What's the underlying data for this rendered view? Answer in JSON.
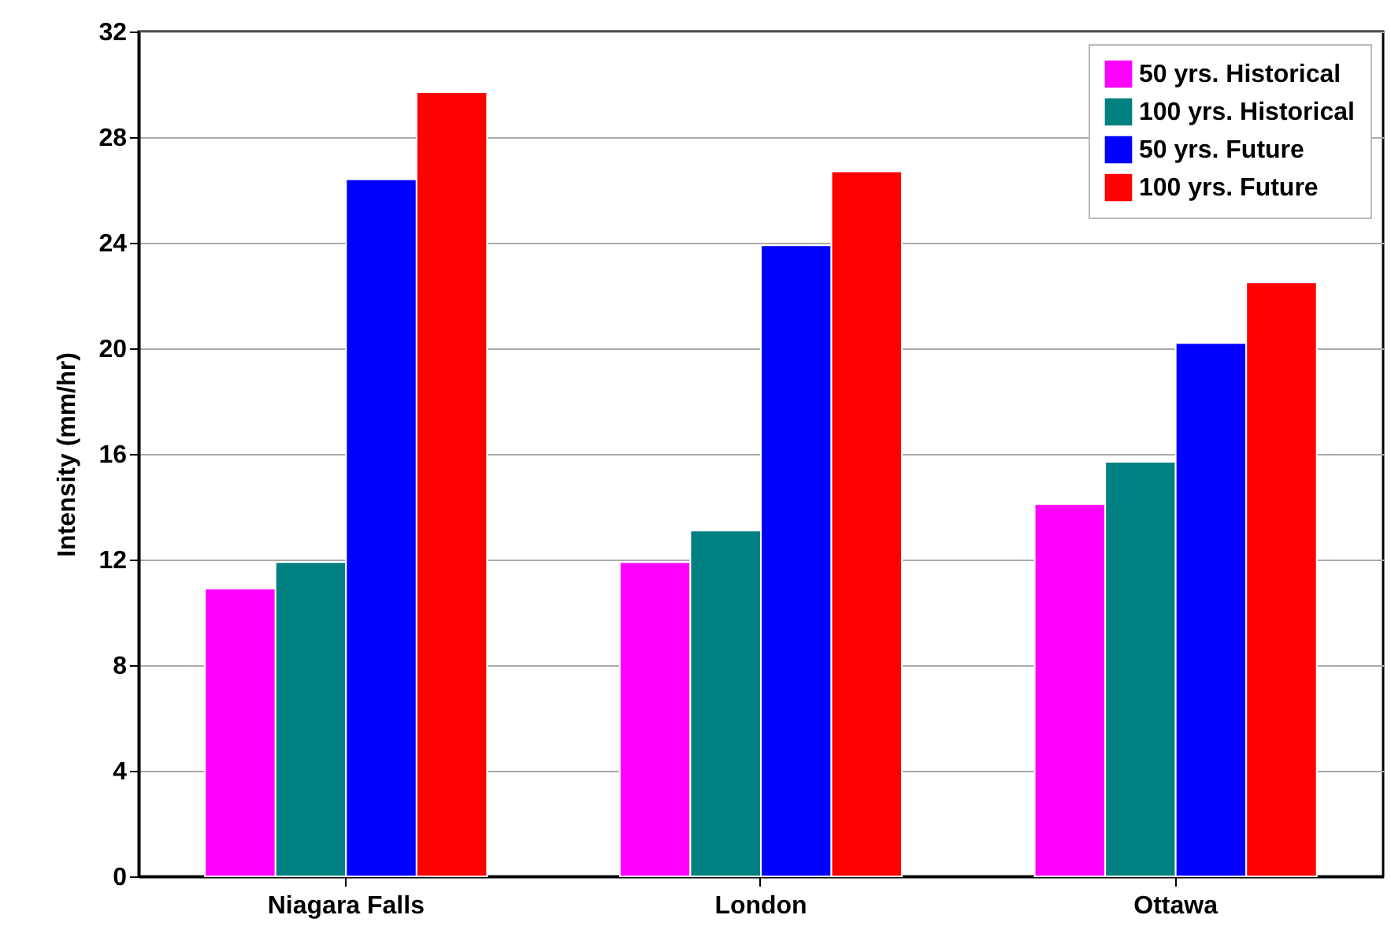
{
  "chart_data": {
    "type": "bar",
    "ylabel": "Intensity (mm/hr)",
    "categories": [
      "Niagara Falls",
      "London",
      "Ottawa"
    ],
    "series": [
      {
        "name": "50 yrs. Historical",
        "color": "#ff00ff",
        "values": [
          10.9,
          11.9,
          14.1
        ]
      },
      {
        "name": "100 yrs. Historical",
        "color": "#008080",
        "values": [
          11.9,
          13.1,
          15.7
        ]
      },
      {
        "name": "50 yrs. Future",
        "color": "#0000ff",
        "values": [
          26.4,
          23.9,
          20.2
        ]
      },
      {
        "name": "100 yrs. Future",
        "color": "#ff0000",
        "values": [
          29.7,
          26.7,
          22.5
        ]
      }
    ],
    "ylim": [
      0,
      32
    ],
    "yticks": [
      0,
      4,
      8,
      12,
      16,
      20,
      24,
      28,
      32
    ],
    "grid": "y",
    "legend": "top right"
  }
}
